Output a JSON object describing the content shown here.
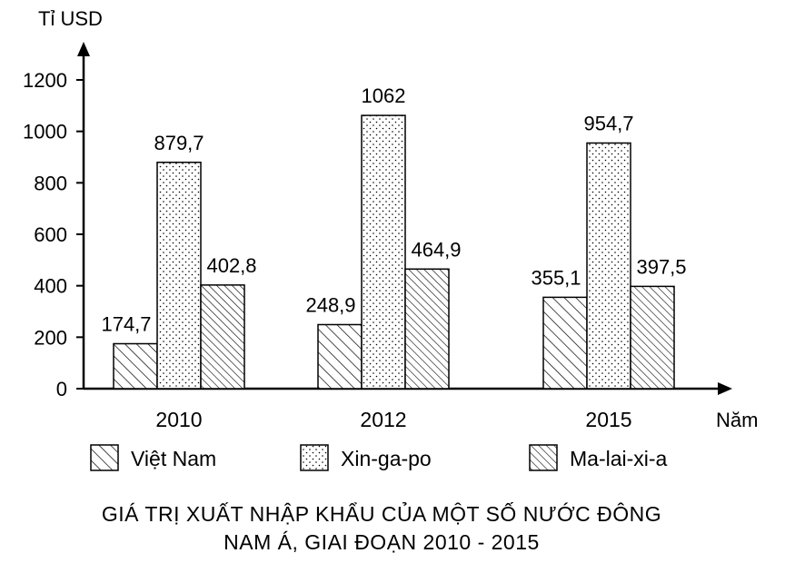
{
  "chart_data": {
    "type": "bar",
    "ylabel": "Tỉ USD",
    "xlabel": "Năm",
    "categories": [
      "2010",
      "2012",
      "2015"
    ],
    "series": [
      {
        "name": "Việt Nam",
        "values": [
          174.7,
          248.9,
          355.1
        ],
        "labels": [
          "174,7",
          "248,9",
          "355,1"
        ],
        "pattern": "hatch-wide"
      },
      {
        "name": "Xin-ga-po",
        "values": [
          879.7,
          1062,
          954.7
        ],
        "labels": [
          "879,7",
          "1062",
          "954,7"
        ],
        "pattern": "dots"
      },
      {
        "name": "Ma-lai-xi-a",
        "values": [
          402.8,
          464.9,
          397.5
        ],
        "labels": [
          "402,8",
          "464,9",
          "397,5"
        ],
        "pattern": "hatch-dense"
      }
    ],
    "yticks": [
      0,
      200,
      400,
      600,
      800,
      1000,
      1200
    ],
    "ylim": [
      0,
      1200
    ],
    "grid": false,
    "legend": "bottom",
    "title_lines": [
      "GIÁ TRỊ XUẤT NHẬP KHẨU CỦA MỘT SỐ NƯỚC ĐÔNG",
      "NAM Á, GIAI ĐOẠN 2010 - 2015"
    ]
  }
}
